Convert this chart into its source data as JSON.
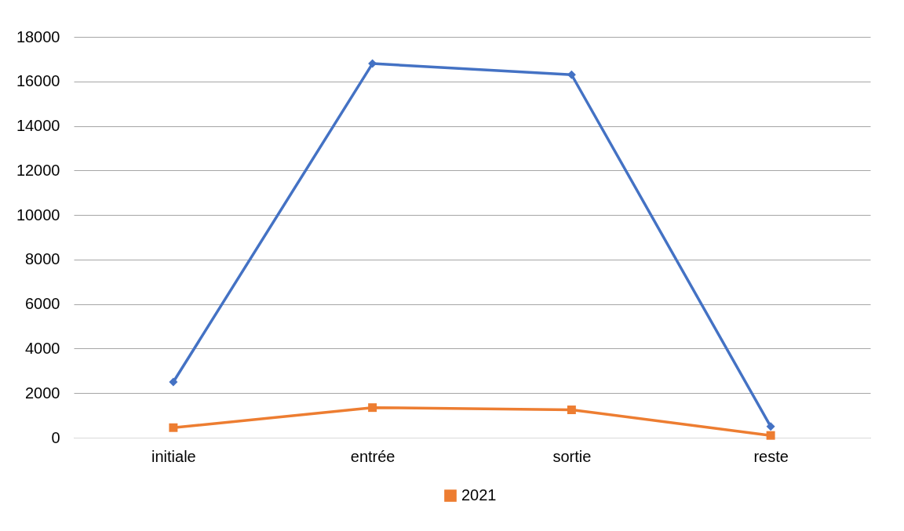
{
  "chart_data": {
    "type": "line",
    "categories": [
      "initiale",
      "entrée",
      "sortie",
      "reste"
    ],
    "series": [
      {
        "color": "#4472c4",
        "marker": "diamond",
        "values": [
          2500,
          16800,
          16300,
          500
        ]
      },
      {
        "name": "2021",
        "color": "#ed7d31",
        "marker": "square",
        "values": [
          450,
          1350,
          1250,
          100
        ]
      }
    ],
    "ylim": [
      0,
      18000
    ],
    "yticks": [
      0,
      2000,
      4000,
      6000,
      8000,
      10000,
      12000,
      14000,
      16000,
      18000
    ],
    "grid": "y",
    "legend": "bottom"
  }
}
